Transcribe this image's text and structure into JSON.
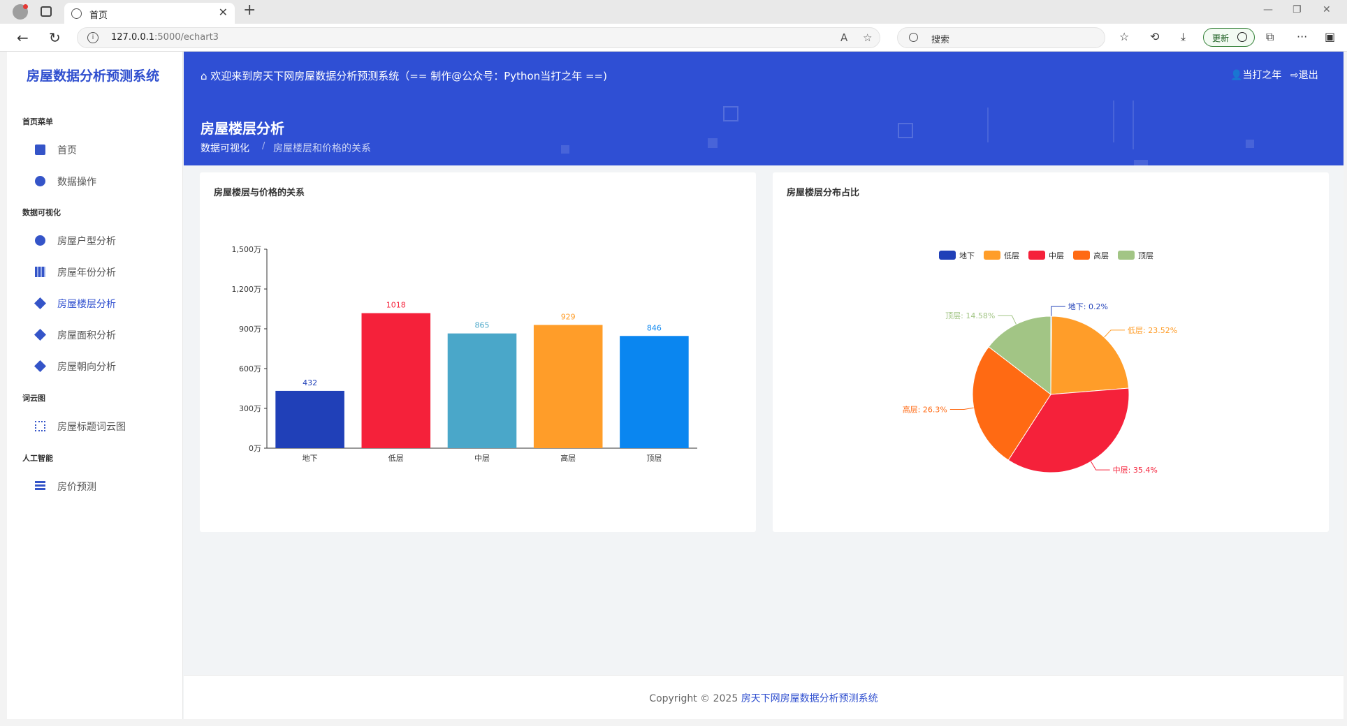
{
  "browser": {
    "tab_title": "首页",
    "url_host": "127.0.0.1",
    "url_path": ":5000/echart3",
    "search_placeholder": "搜索",
    "update_label": "更新"
  },
  "sidebar": {
    "brand": "房屋数据分析预测系统",
    "sections": [
      {
        "label": "首页菜单",
        "items": [
          {
            "label": "首页"
          },
          {
            "label": "数据操作"
          }
        ]
      },
      {
        "label": "数据可视化",
        "items": [
          {
            "label": "房屋户型分析"
          },
          {
            "label": "房屋年份分析"
          },
          {
            "label": "房屋楼层分析"
          },
          {
            "label": "房屋面积分析"
          },
          {
            "label": "房屋朝向分析"
          }
        ]
      },
      {
        "label": "词云图",
        "items": [
          {
            "label": "房屋标题词云图"
          }
        ]
      },
      {
        "label": "人工智能",
        "items": [
          {
            "label": "房价预测"
          }
        ]
      }
    ]
  },
  "header": {
    "welcome": "欢迎来到房天下网房屋数据分析预测系统（== 制作@公众号：Python当打之年 ==)",
    "user_name": "当打之年",
    "logout": "退出",
    "page_title": "房屋楼层分析",
    "breadcrumb_1": "数据可视化",
    "breadcrumb_sep": "/",
    "breadcrumb_2": "房屋楼层和价格的关系"
  },
  "cards": {
    "bar_title": "房屋楼层与价格的关系",
    "pie_title": "房屋楼层分布占比"
  },
  "chart_data": [
    {
      "type": "bar",
      "title": "房屋楼层与价格的关系",
      "categories": [
        "地下",
        "低层",
        "中层",
        "高层",
        "顶层"
      ],
      "values": [
        432,
        1018,
        865,
        929,
        846
      ],
      "colors": [
        "#2040b8",
        "#f5213a",
        "#4aa7c9",
        "#ff9d29",
        "#0a86f0"
      ],
      "ylim": [
        0,
        1500
      ],
      "yticks": [
        "0万",
        "300万",
        "600万",
        "900万",
        "1,200万",
        "1,500万"
      ],
      "ytick_values": [
        0,
        300,
        600,
        900,
        1200,
        1500
      ],
      "grid": false
    },
    {
      "type": "pie",
      "title": "房屋楼层分布占比",
      "labels": [
        "地下",
        "低层",
        "中层",
        "高层",
        "顶层"
      ],
      "values": [
        0.2,
        23.52,
        35.4,
        26.3,
        14.58
      ],
      "value_labels": [
        "地下: 0.2%",
        "低层: 23.52%",
        "中层: 35.4%",
        "高层: 26.3%",
        "顶层: 14.58%"
      ],
      "colors": [
        "#2040b8",
        "#ff9d29",
        "#f5213a",
        "#ff6a13",
        "#a2c585"
      ],
      "legend": "top-center"
    }
  ],
  "footer": {
    "copyright": "Copyright © 2025 ",
    "brand": "房天下网房屋数据分析预测系统"
  }
}
